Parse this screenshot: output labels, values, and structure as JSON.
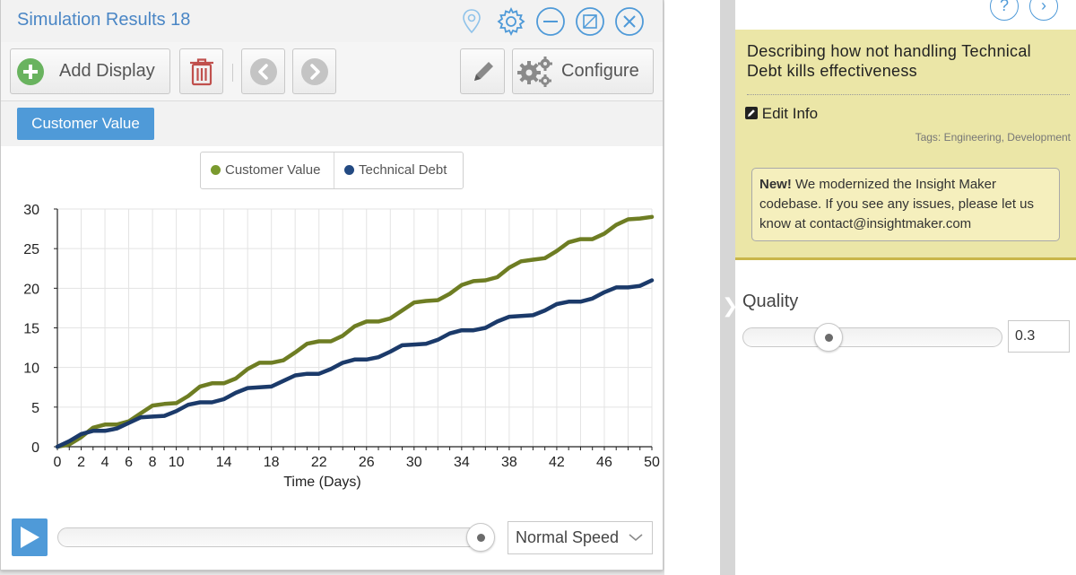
{
  "window": {
    "title": "Simulation Results 18",
    "title_color": "#4a86c5"
  },
  "toolbar": {
    "add_display_label": "Add Display",
    "configure_label": "Configure"
  },
  "tabs": [
    {
      "label": "Customer Value",
      "active": true
    }
  ],
  "legend": [
    {
      "label": "Customer Value",
      "color": "#7a8c2e"
    },
    {
      "label": "Technical Debt",
      "color": "#1e4275"
    }
  ],
  "playback": {
    "speed_selected": "Normal Speed",
    "progress": 1.0
  },
  "chart_data": {
    "type": "line",
    "xlabel": "Time (Days)",
    "ylabel": "",
    "xlim": [
      0,
      50
    ],
    "ylim": [
      0,
      30
    ],
    "xticks": [
      0,
      2,
      4,
      6,
      8,
      10,
      14,
      18,
      22,
      26,
      30,
      34,
      38,
      42,
      46,
      50
    ],
    "yticks": [
      0,
      5,
      10,
      15,
      20,
      25,
      30
    ],
    "grid": true,
    "legend_position": "top-center",
    "x": [
      0,
      1,
      2,
      3,
      4,
      5,
      6,
      7,
      8,
      9,
      10,
      11,
      12,
      13,
      14,
      15,
      16,
      17,
      18,
      19,
      20,
      21,
      22,
      23,
      24,
      25,
      26,
      27,
      28,
      29,
      30,
      31,
      32,
      33,
      34,
      35,
      36,
      37,
      38,
      39,
      40,
      41,
      42,
      43,
      44,
      45,
      46,
      47,
      48,
      49,
      50
    ],
    "series": [
      {
        "name": "Customer Value",
        "color": "#6e7d23",
        "values": [
          0,
          0.3,
          1.2,
          2.4,
          2.8,
          2.8,
          3.2,
          4.2,
          5.2,
          5.4,
          5.5,
          6.4,
          7.6,
          8.0,
          8.0,
          8.6,
          9.8,
          10.6,
          10.6,
          10.9,
          11.9,
          13.0,
          13.3,
          13.3,
          14.0,
          15.2,
          15.8,
          15.8,
          16.2,
          17.2,
          18.2,
          18.4,
          18.5,
          19.3,
          20.4,
          20.9,
          21.0,
          21.4,
          22.6,
          23.4,
          23.6,
          23.8,
          24.7,
          25.8,
          26.2,
          26.2,
          26.9,
          28.0,
          28.7,
          28.8,
          29.0
        ]
      },
      {
        "name": "Technical Debt",
        "color": "#1b3a6a",
        "values": [
          0,
          0.7,
          1.6,
          2.0,
          2.0,
          2.3,
          3.0,
          3.7,
          3.8,
          3.9,
          4.5,
          5.3,
          5.6,
          5.6,
          6.0,
          6.8,
          7.4,
          7.5,
          7.6,
          8.3,
          9.0,
          9.2,
          9.2,
          9.8,
          10.6,
          11.0,
          11.0,
          11.3,
          12.0,
          12.8,
          12.9,
          13.0,
          13.5,
          14.3,
          14.7,
          14.7,
          15.0,
          15.8,
          16.4,
          16.5,
          16.6,
          17.2,
          18.0,
          18.3,
          18.3,
          18.7,
          19.5,
          20.1,
          20.1,
          20.3,
          21.0
        ]
      }
    ]
  },
  "panel": {
    "help_symbol": "?",
    "next_symbol": "›",
    "headline": "Describing how not handling Technical Debt kills effectiveness",
    "edit_label": "Edit Info",
    "tags": "Tags: Engineering, Development",
    "notice_strong": "New!",
    "notice_text": " We modernized the Insight Maker codebase. If you see any issues, please let us know at contact@insightmaker.com",
    "accent_color": "#ebe6a7"
  },
  "quality": {
    "label": "Quality",
    "value": "0.3",
    "slider_fraction": 0.3
  }
}
